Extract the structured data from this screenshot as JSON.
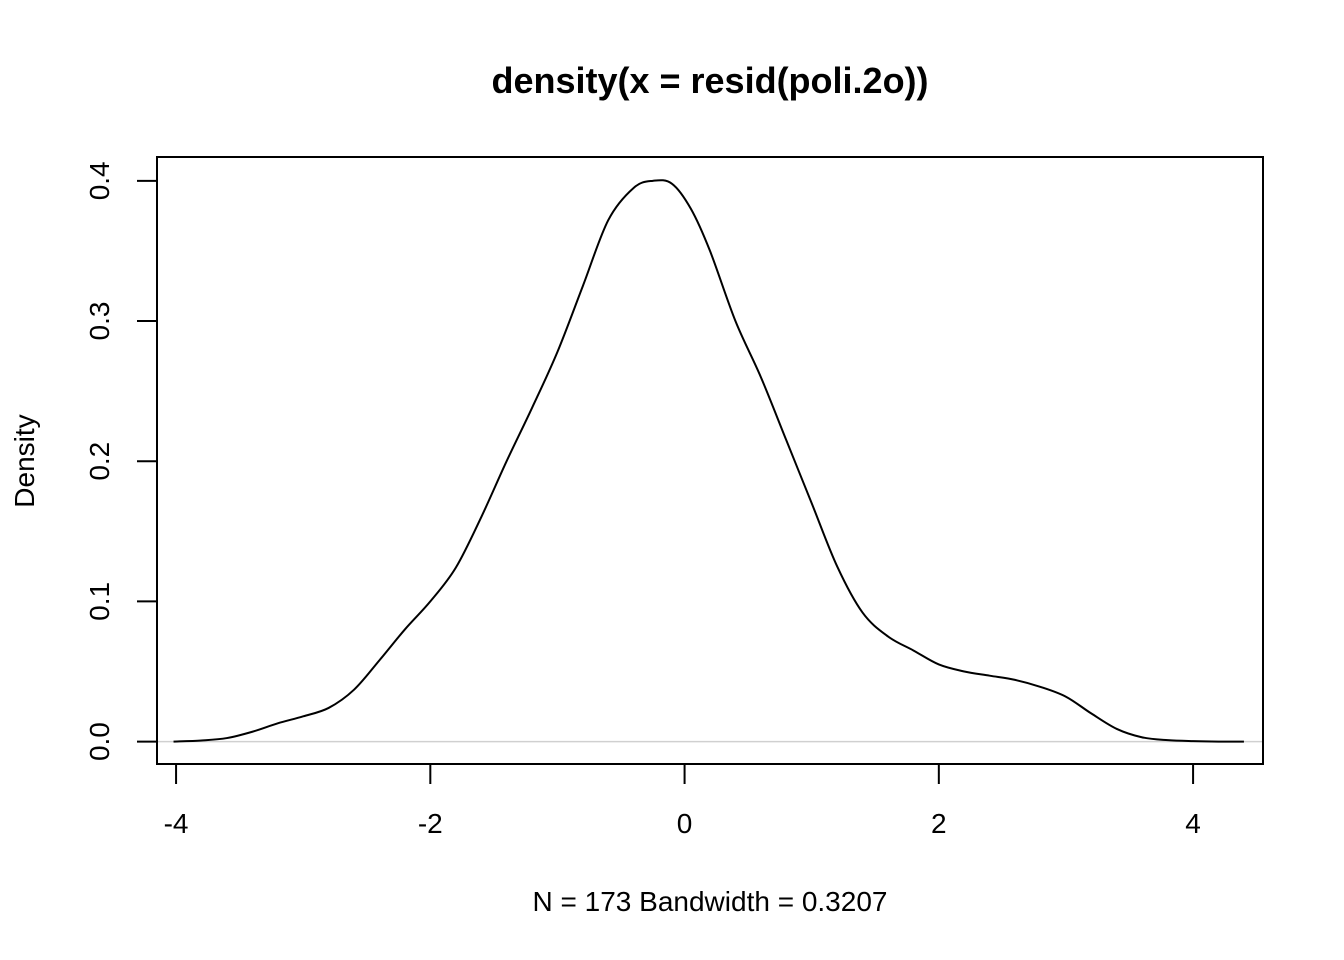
{
  "chart_data": {
    "type": "line",
    "title": "density(x = resid(poli.2o))",
    "xlabel": "N = 173   Bandwidth = 0.3207",
    "ylabel": "Density",
    "xlim": [
      -4.15,
      4.55
    ],
    "ylim": [
      -0.016,
      0.417
    ],
    "x_ticks": [
      -4,
      -2,
      0,
      2,
      4
    ],
    "x_tick_labels": [
      "-4",
      "-2",
      "0",
      "2",
      "4"
    ],
    "y_ticks": [
      0.0,
      0.1,
      0.2,
      0.3,
      0.4
    ],
    "y_tick_labels": [
      "0.0",
      "0.1",
      "0.2",
      "0.3",
      "0.4"
    ],
    "grid": false,
    "legend": "none",
    "baseline_y": 0,
    "series": [
      {
        "color": "#000000",
        "x": [
          -4.02,
          -3.8,
          -3.6,
          -3.4,
          -3.2,
          -3.0,
          -2.8,
          -2.6,
          -2.4,
          -2.2,
          -2.0,
          -1.8,
          -1.6,
          -1.4,
          -1.2,
          -1.0,
          -0.8,
          -0.6,
          -0.4,
          -0.25,
          -0.1,
          0.05,
          0.2,
          0.4,
          0.6,
          0.8,
          1.0,
          1.2,
          1.4,
          1.6,
          1.8,
          2.0,
          2.2,
          2.4,
          2.6,
          2.8,
          3.0,
          3.2,
          3.4,
          3.6,
          3.8,
          4.0,
          4.2,
          4.4
        ],
        "y": [
          0.0,
          0.0008,
          0.0025,
          0.007,
          0.013,
          0.018,
          0.024,
          0.037,
          0.058,
          0.08,
          0.1,
          0.124,
          0.16,
          0.2,
          0.238,
          0.278,
          0.325,
          0.372,
          0.395,
          0.4,
          0.398,
          0.38,
          0.35,
          0.3,
          0.26,
          0.215,
          0.17,
          0.125,
          0.092,
          0.075,
          0.065,
          0.055,
          0.05,
          0.047,
          0.044,
          0.039,
          0.032,
          0.02,
          0.009,
          0.003,
          0.001,
          0.0003,
          0.0,
          0.0
        ]
      }
    ]
  }
}
